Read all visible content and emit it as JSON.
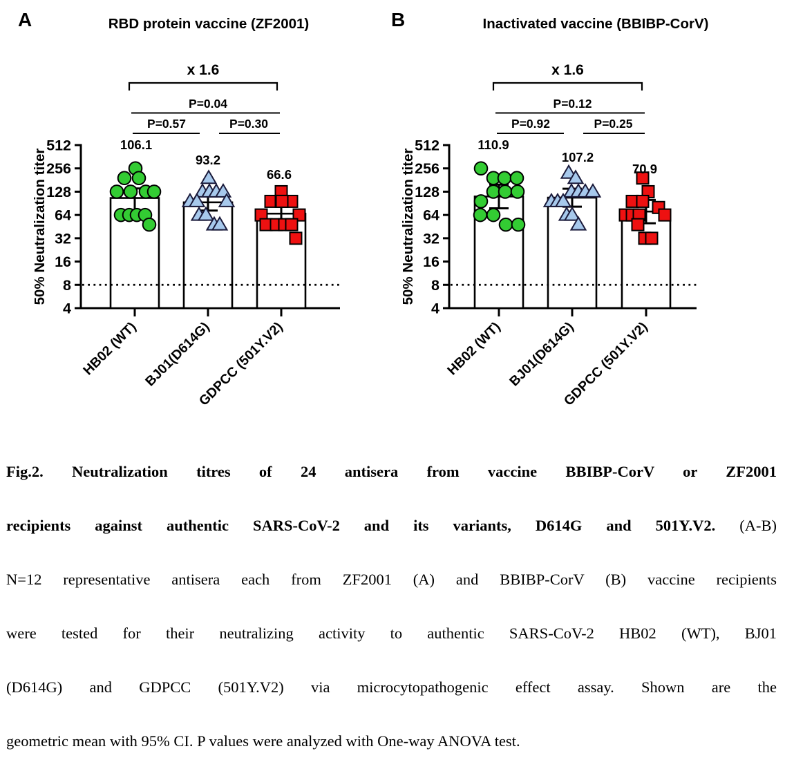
{
  "figure": {
    "caption": {
      "lines": [
        {
          "bold": "Fig.2. Neutralization titres of 24 antisera from vaccine BBIBP-CorV or ZF2001",
          "regular": ""
        },
        {
          "bold": "recipients against authentic SARS-CoV-2 and its variants, D614G and 501Y.V2.",
          "regular": " (A-B)"
        },
        {
          "bold": "",
          "regular": "N=12 representative antisera each from ZF2001 (A) and BBIBP-CorV (B) vaccine recipients"
        },
        {
          "bold": "",
          "regular": "were tested for their neutralizing activity to authentic SARS-CoV-2 HB02 (WT), BJ01"
        },
        {
          "bold": "",
          "regular": "(D614G) and GDPCC (501Y.V2) via microcytopathogenic effect assay. Shown are the"
        },
        {
          "bold": "",
          "regular": "geometric mean with 95% CI. P values were analyzed with One-way ANOVA test."
        }
      ]
    }
  },
  "chart_data": [
    {
      "type": "scatter",
      "panel_letter": "A",
      "title": "RBD protein vaccine (ZF2001)",
      "ylabel": "50% Neutralization titer",
      "scale": "log2",
      "ylim": [
        4,
        512
      ],
      "yticks": [
        512,
        256,
        128,
        64,
        32,
        16,
        8,
        4
      ],
      "reference_line_y": 8,
      "fold_change_label": "x 1.6",
      "p_values": {
        "overall": "P=0.04",
        "left_pair": "P=0.57",
        "right_pair": "P=0.30"
      },
      "categories": [
        "HB02 (WT)",
        "BJ01(D614G)",
        "GDPCC (501Y.V2)"
      ],
      "geometric_means": [
        106.1,
        93.2,
        66.6
      ],
      "mean_labels": [
        "106.1",
        "93.2",
        "66.6"
      ],
      "ci95": [
        [
          73,
          141
        ],
        [
          73,
          119
        ],
        [
          50,
          84
        ]
      ],
      "groups": [
        {
          "label": "HB02 (WT)",
          "mean_label": "106.1",
          "gm": 106.1,
          "ci95": [
            73,
            141
          ],
          "marker": "circle",
          "fill": "#33cc33",
          "stroke": "#000000",
          "points": [
            {
              "v": 256,
              "dx": 1
            },
            {
              "v": 192,
              "dx": -15
            },
            {
              "v": 192,
              "dx": 6
            },
            {
              "v": 128,
              "dx": -26
            },
            {
              "v": 128,
              "dx": -6
            },
            {
              "v": 128,
              "dx": 16
            },
            {
              "v": 128,
              "dx": 28
            },
            {
              "v": 64,
              "dx": -20
            },
            {
              "v": 64,
              "dx": -8
            },
            {
              "v": 64,
              "dx": 3
            },
            {
              "v": 64,
              "dx": 15
            },
            {
              "v": 48,
              "dx": 21
            }
          ]
        },
        {
          "label": "BJ01(D614G)",
          "mean_label": "93.2",
          "gm": 93.2,
          "ci95": [
            73,
            119
          ],
          "marker": "triangle",
          "fill": "#a7c9ec",
          "stroke": "#1a1a3a",
          "points": [
            {
              "v": 192,
              "dx": 1
            },
            {
              "v": 128,
              "dx": -8
            },
            {
              "v": 128,
              "dx": 2
            },
            {
              "v": 128,
              "dx": 12
            },
            {
              "v": 128,
              "dx": 22
            },
            {
              "v": 96,
              "dx": -26
            },
            {
              "v": 96,
              "dx": -16
            },
            {
              "v": 96,
              "dx": 27
            },
            {
              "v": 64,
              "dx": -13
            },
            {
              "v": 64,
              "dx": -3
            },
            {
              "v": 48,
              "dx": 9
            },
            {
              "v": 48,
              "dx": 17
            }
          ]
        },
        {
          "label": "GDPCC (501Y.V2)",
          "mean_label": "66.6",
          "gm": 66.6,
          "ci95": [
            50,
            84
          ],
          "marker": "square",
          "fill": "#ee1111",
          "stroke": "#000000",
          "points": [
            {
              "v": 128,
              "dx": 0
            },
            {
              "v": 96,
              "dx": -15
            },
            {
              "v": 96,
              "dx": 0
            },
            {
              "v": 96,
              "dx": 15
            },
            {
              "v": 96,
              "dx": 1
            },
            {
              "v": 64,
              "dx": -29
            },
            {
              "v": 64,
              "dx": 26
            },
            {
              "v": 48,
              "dx": -22
            },
            {
              "v": 48,
              "dx": -7
            },
            {
              "v": 48,
              "dx": 5
            },
            {
              "v": 48,
              "dx": 15
            },
            {
              "v": 32,
              "dx": 21
            }
          ]
        }
      ]
    },
    {
      "type": "scatter",
      "panel_letter": "B",
      "title": "Inactivated vaccine (BBIBP-CorV)",
      "ylabel": "50% Neutralization titer",
      "scale": "log2",
      "ylim": [
        4,
        512
      ],
      "yticks": [
        512,
        256,
        128,
        64,
        32,
        16,
        8,
        4
      ],
      "reference_line_y": 8,
      "fold_change_label": "x 1.6",
      "p_values": {
        "overall": "P=0.12",
        "left_pair": "P=0.92",
        "right_pair": "P=0.25"
      },
      "categories": [
        "HB02 (WT)",
        "BJ01(D614G)",
        "GDPCC (501Y.V2)"
      ],
      "geometric_means": [
        110.9,
        107.2,
        70.9
      ],
      "mean_labels": [
        "110.9",
        "107.2",
        "70.9"
      ],
      "ci95": [
        [
          78,
          158
        ],
        [
          82,
          140
        ],
        [
          50,
          100
        ]
      ],
      "groups": [
        {
          "label": "HB02 (WT)",
          "mean_label": "110.9",
          "gm": 110.9,
          "ci95": [
            78,
            158
          ],
          "marker": "circle",
          "fill": "#33cc33",
          "stroke": "#000000",
          "points": [
            {
              "v": 256,
              "dx": -26
            },
            {
              "v": 192,
              "dx": -8
            },
            {
              "v": 192,
              "dx": 8
            },
            {
              "v": 192,
              "dx": 26
            },
            {
              "v": 128,
              "dx": -8
            },
            {
              "v": 128,
              "dx": 9
            },
            {
              "v": 128,
              "dx": 27
            },
            {
              "v": 96,
              "dx": -26
            },
            {
              "v": 64,
              "dx": -27
            },
            {
              "v": 64,
              "dx": -8
            },
            {
              "v": 48,
              "dx": 10
            },
            {
              "v": 48,
              "dx": 28
            }
          ]
        },
        {
          "label": "BJ01(D614G)",
          "mean_label": "107.2",
          "gm": 107.2,
          "ci95": [
            82,
            140
          ],
          "marker": "triangle",
          "fill": "#a7c9ec",
          "stroke": "#1a1a3a",
          "points": [
            {
              "v": 224,
              "dx": -5
            },
            {
              "v": 192,
              "dx": 5
            },
            {
              "v": 128,
              "dx": -1
            },
            {
              "v": 128,
              "dx": 9
            },
            {
              "v": 128,
              "dx": 19
            },
            {
              "v": 128,
              "dx": 30
            },
            {
              "v": 96,
              "dx": -30
            },
            {
              "v": 96,
              "dx": -21
            },
            {
              "v": 96,
              "dx": -13
            },
            {
              "v": 64,
              "dx": -8
            },
            {
              "v": 64,
              "dx": 0
            },
            {
              "v": 48,
              "dx": 9
            }
          ]
        },
        {
          "label": "GDPCC (501Y.V2)",
          "mean_label": "70.9",
          "gm": 70.9,
          "ci95": [
            50,
            100
          ],
          "marker": "square",
          "fill": "#ee1111",
          "stroke": "#000000",
          "points": [
            {
              "v": 192,
              "dx": -5
            },
            {
              "v": 128,
              "dx": 3
            },
            {
              "v": 96,
              "dx": -20
            },
            {
              "v": 96,
              "dx": -5
            },
            {
              "v": 80,
              "dx": 18
            },
            {
              "v": 64,
              "dx": -30
            },
            {
              "v": 64,
              "dx": -20
            },
            {
              "v": 64,
              "dx": -10
            },
            {
              "v": 64,
              "dx": 27
            },
            {
              "v": 48,
              "dx": -12
            },
            {
              "v": 32,
              "dx": -2
            },
            {
              "v": 32,
              "dx": 8
            }
          ]
        }
      ]
    }
  ]
}
